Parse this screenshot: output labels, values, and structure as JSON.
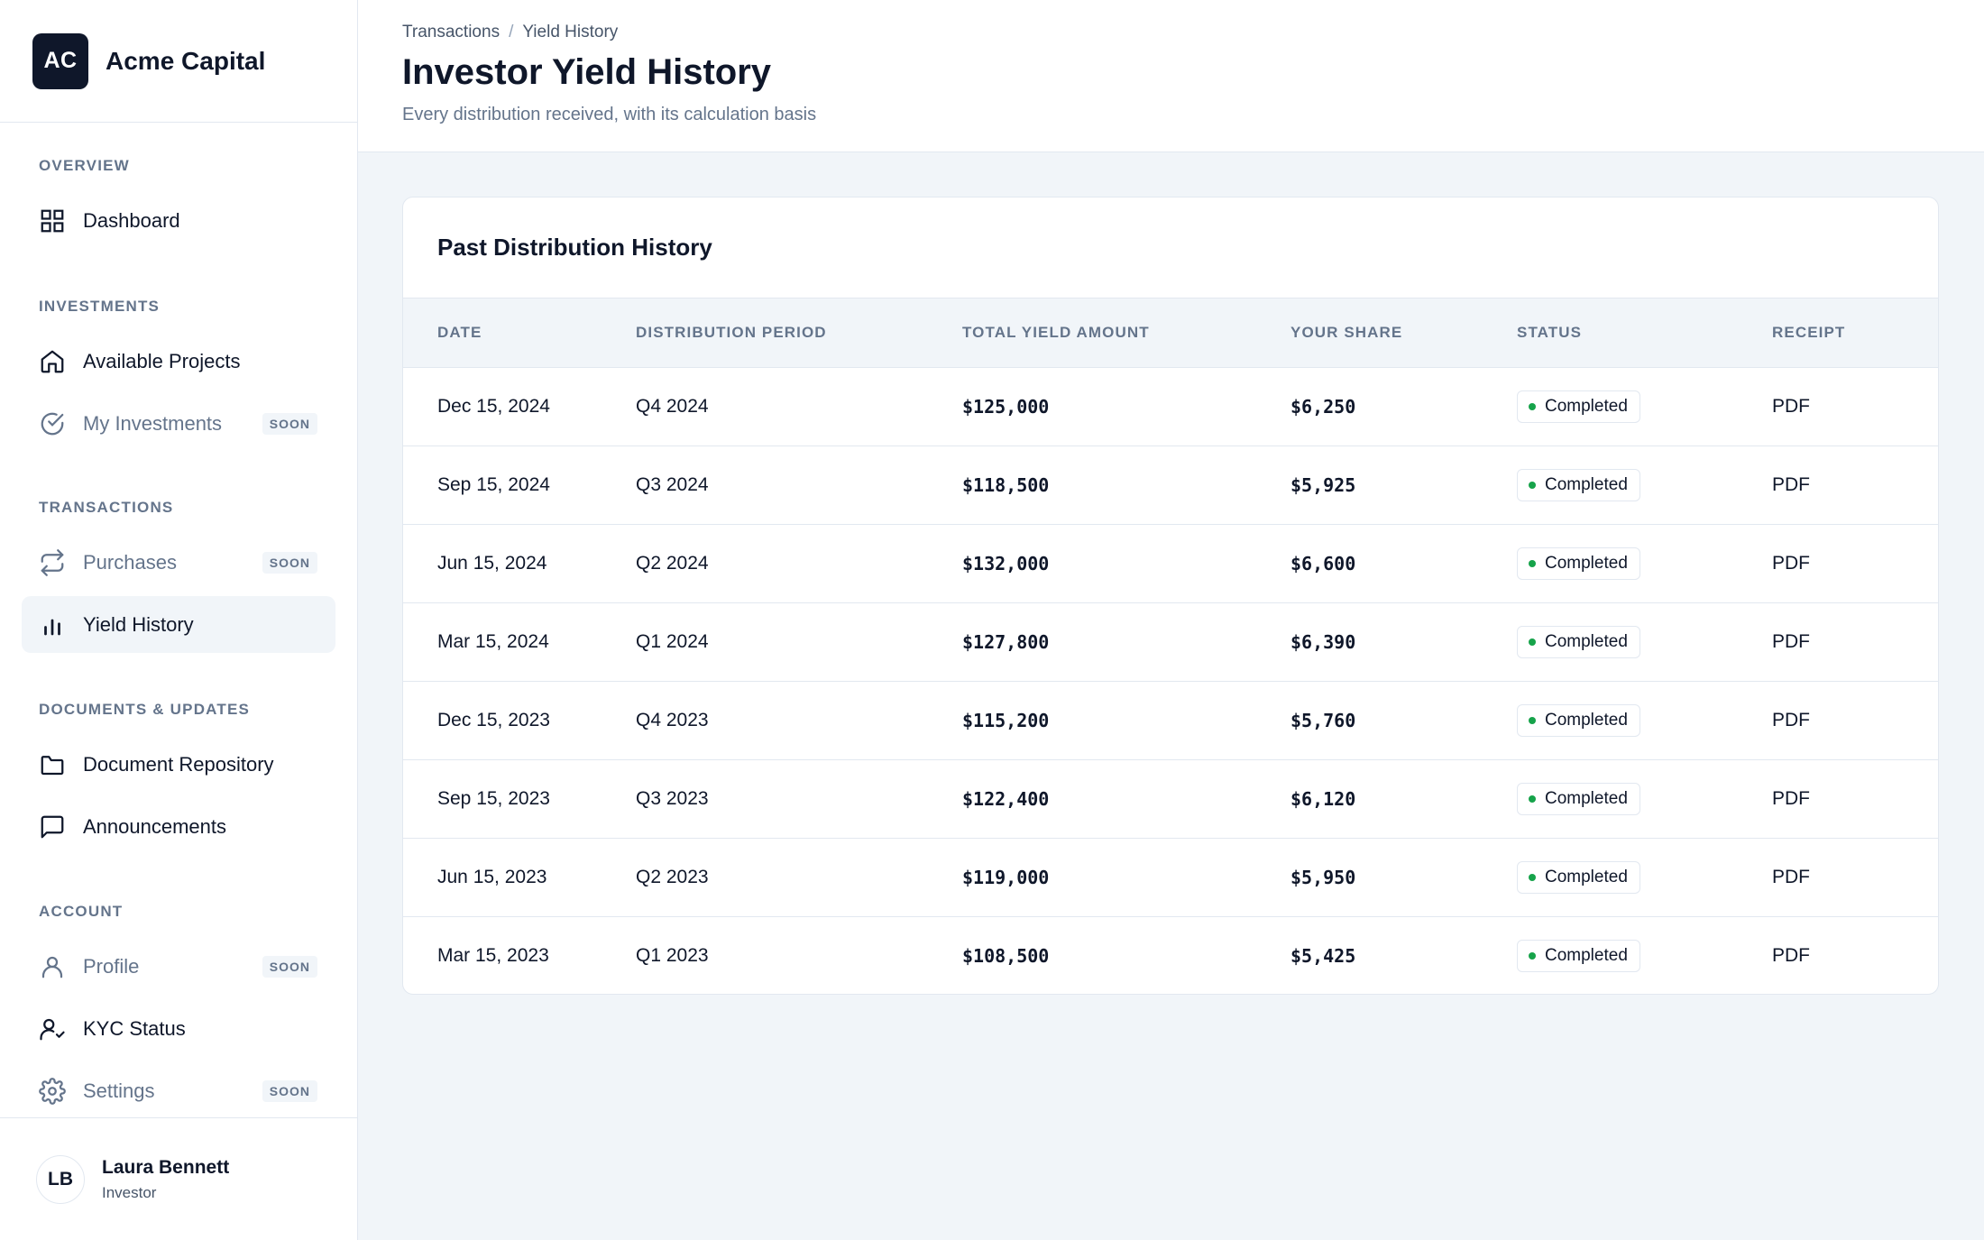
{
  "brand": {
    "logo_text": "AC",
    "name": "Acme Capital"
  },
  "sidebar": {
    "sections": [
      {
        "title": "OVERVIEW",
        "items": [
          {
            "label": "Dashboard",
            "icon": "grid-icon",
            "soon": false,
            "active": false
          }
        ]
      },
      {
        "title": "INVESTMENTS",
        "items": [
          {
            "label": "Available Projects",
            "icon": "home-icon",
            "soon": false,
            "active": false
          },
          {
            "label": "My Investments",
            "icon": "check-circle-icon",
            "soon": true,
            "active": false
          }
        ]
      },
      {
        "title": "TRANSACTIONS",
        "items": [
          {
            "label": "Purchases",
            "icon": "repeat-icon",
            "soon": true,
            "active": false
          },
          {
            "label": "Yield History",
            "icon": "bar-chart-icon",
            "soon": false,
            "active": true
          }
        ]
      },
      {
        "title": "DOCUMENTS & UPDATES",
        "items": [
          {
            "label": "Document Repository",
            "icon": "folder-icon",
            "soon": false,
            "active": false
          },
          {
            "label": "Announcements",
            "icon": "message-square-icon",
            "soon": false,
            "active": false
          }
        ]
      },
      {
        "title": "ACCOUNT",
        "items": [
          {
            "label": "Profile",
            "icon": "user-icon",
            "soon": true,
            "active": false
          },
          {
            "label": "KYC Status",
            "icon": "user-check-icon",
            "soon": false,
            "active": false
          },
          {
            "label": "Settings",
            "icon": "gear-icon",
            "soon": true,
            "active": false
          }
        ]
      }
    ],
    "soon_label": "SOON"
  },
  "user": {
    "initials": "LB",
    "name": "Laura Bennett",
    "role": "Investor"
  },
  "header": {
    "breadcrumb": [
      "Transactions",
      "Yield History"
    ],
    "breadcrumb_separator": "/",
    "title": "Investor Yield History",
    "subtitle": "Every distribution received, with its calculation basis"
  },
  "table": {
    "title": "Past Distribution History",
    "columns": [
      "DATE",
      "DISTRIBUTION PERIOD",
      "TOTAL YIELD AMOUNT",
      "YOUR SHARE",
      "STATUS",
      "RECEIPT"
    ],
    "rows": [
      {
        "date": "Dec 15, 2024",
        "period": "Q4 2024",
        "total": "$125,000",
        "share": "$6,250",
        "status": "Completed",
        "receipt": "PDF"
      },
      {
        "date": "Sep 15, 2024",
        "period": "Q3 2024",
        "total": "$118,500",
        "share": "$5,925",
        "status": "Completed",
        "receipt": "PDF"
      },
      {
        "date": "Jun 15, 2024",
        "period": "Q2 2024",
        "total": "$132,000",
        "share": "$6,600",
        "status": "Completed",
        "receipt": "PDF"
      },
      {
        "date": "Mar 15, 2024",
        "period": "Q1 2024",
        "total": "$127,800",
        "share": "$6,390",
        "status": "Completed",
        "receipt": "PDF"
      },
      {
        "date": "Dec 15, 2023",
        "period": "Q4 2023",
        "total": "$115,200",
        "share": "$5,760",
        "status": "Completed",
        "receipt": "PDF"
      },
      {
        "date": "Sep 15, 2023",
        "period": "Q3 2023",
        "total": "$122,400",
        "share": "$6,120",
        "status": "Completed",
        "receipt": "PDF"
      },
      {
        "date": "Jun 15, 2023",
        "period": "Q2 2023",
        "total": "$119,000",
        "share": "$5,950",
        "status": "Completed",
        "receipt": "PDF"
      },
      {
        "date": "Mar 15, 2023",
        "period": "Q1 2023",
        "total": "$108,500",
        "share": "$5,425",
        "status": "Completed",
        "receipt": "PDF"
      }
    ]
  },
  "colors": {
    "brand_dark": "#0f172a",
    "muted": "#64748b",
    "status_completed": "#16a34a",
    "background": "#f1f5f9"
  }
}
